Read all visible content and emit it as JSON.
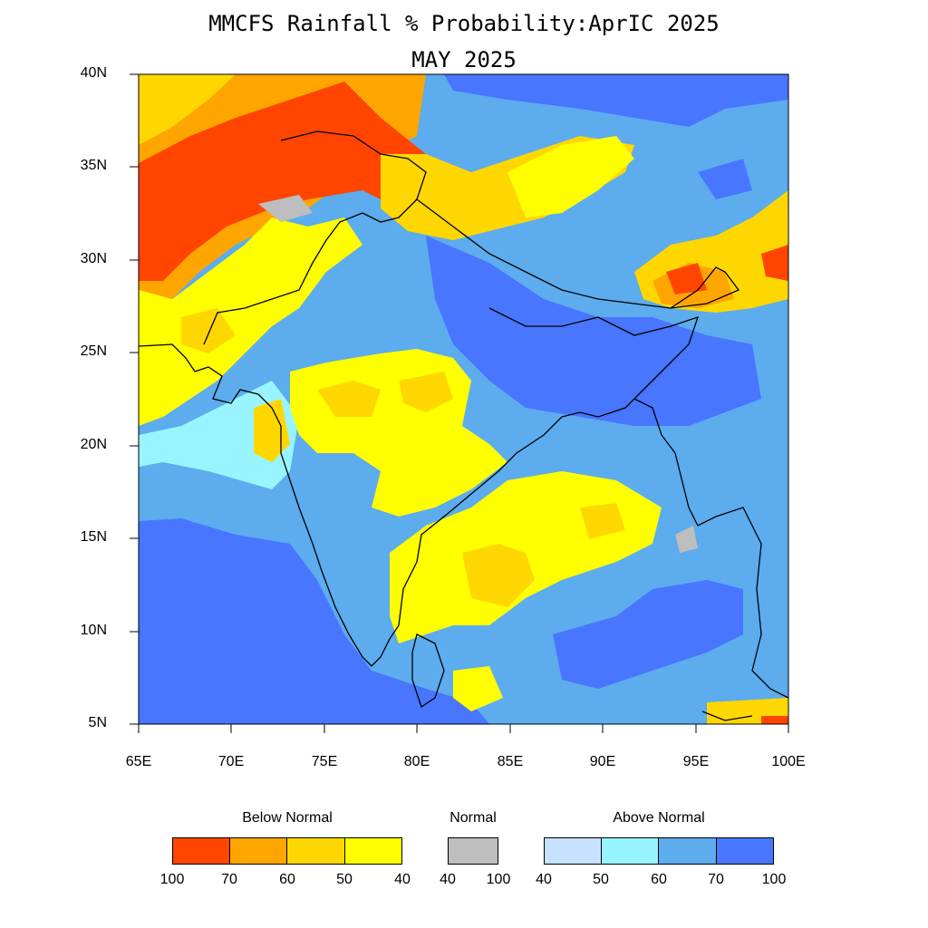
{
  "title": {
    "line1": "MMCFS Rainfall % Probability:AprIC 2025",
    "line2": "MAY 2025"
  },
  "axes": {
    "lat_labels": [
      "40N",
      "35N",
      "30N",
      "25N",
      "20N",
      "15N",
      "10N",
      "5N"
    ],
    "lon_labels": [
      "65E",
      "70E",
      "75E",
      "80E",
      "85E",
      "90E",
      "95E",
      "100E"
    ]
  },
  "colors": {
    "bn_100_70": "#ff4500",
    "bn_70_60": "#ffa500",
    "bn_60_50": "#ffd700",
    "bn_50_40": "#ffff00",
    "normal": "#bebebe",
    "an_40_50": "#c6e2ff",
    "an_50_60": "#98f5ff",
    "an_60_70": "#5cacee",
    "an_70_100": "#4876ff"
  },
  "legend": {
    "below_normal": {
      "heading": "Below Normal",
      "ticks": [
        "100",
        "70",
        "60",
        "50",
        "40"
      ]
    },
    "normal": {
      "heading": "Normal",
      "ticks": [
        "40",
        "100"
      ]
    },
    "above_normal": {
      "heading": "Above Normal",
      "ticks": [
        "40",
        "50",
        "60",
        "70",
        "100"
      ]
    }
  }
}
